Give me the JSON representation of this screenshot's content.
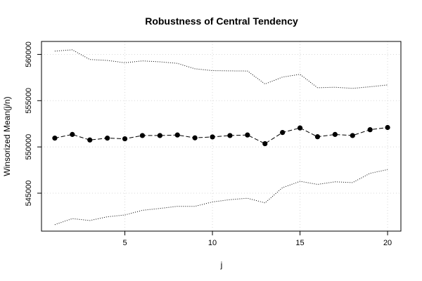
{
  "chart_data": {
    "type": "line",
    "title": "Robustness of Central Tendency",
    "xlabel": "j",
    "ylabel": "Winsorized Mean(j/n)",
    "xlim": [
      0.24,
      20.76
    ],
    "ylim": [
      540900,
      561400
    ],
    "x_ticks": [
      5,
      10,
      15,
      20
    ],
    "y_ticks": [
      545000,
      550000,
      555000,
      560000
    ],
    "grid": true,
    "x": [
      1,
      2,
      3,
      4,
      5,
      6,
      7,
      8,
      9,
      10,
      11,
      12,
      13,
      14,
      15,
      16,
      17,
      18,
      19,
      20
    ],
    "series": [
      {
        "role": "estimate",
        "style": "dashed-line-with-points",
        "color": "#000000",
        "values": [
          550950,
          551350,
          550750,
          550950,
          550880,
          551230,
          551230,
          551290,
          550980,
          551080,
          551230,
          551290,
          550350,
          551560,
          552050,
          551100,
          551350,
          551230,
          551860,
          552100
        ]
      },
      {
        "role": "upper-bound",
        "style": "dotted",
        "color": "#000000",
        "values": [
          560350,
          560500,
          559450,
          559350,
          559100,
          559300,
          559200,
          559030,
          558450,
          558250,
          558220,
          558200,
          556800,
          557550,
          557850,
          556400,
          556450,
          556330,
          556500,
          556700
        ]
      },
      {
        "role": "lower-bound",
        "style": "dotted",
        "color": "#000000",
        "values": [
          541600,
          542250,
          542050,
          542450,
          542650,
          543150,
          543350,
          543580,
          543580,
          544050,
          544300,
          544450,
          543950,
          545600,
          546280,
          545950,
          546230,
          546150,
          547150,
          547550
        ]
      }
    ]
  }
}
